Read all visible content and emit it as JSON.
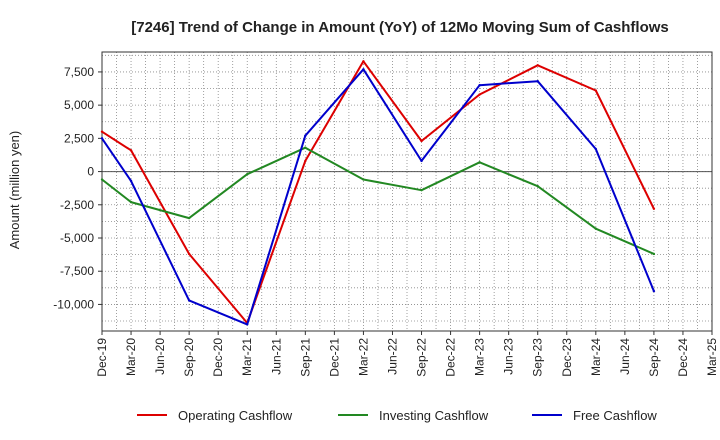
{
  "chart_data": {
    "type": "line",
    "title": "[7246]  Trend of Change in Amount (YoY) of 12Mo Moving Sum of Cashflows",
    "xlabel": "",
    "ylabel": "Amount (million yen)",
    "ylim": [
      -12000,
      9000
    ],
    "yticks": [
      7500,
      5000,
      2500,
      0,
      -2500,
      -5000,
      -7500,
      -10000
    ],
    "ytick_labels": [
      "7,500",
      "5,000",
      "2,500",
      "0",
      "-2,500",
      "-5,000",
      "-7,500",
      "-10,000"
    ],
    "categories": [
      "Dec-19",
      "Mar-20",
      "Jun-20",
      "Sep-20",
      "Dec-20",
      "Mar-21",
      "Jun-21",
      "Sep-21",
      "Dec-21",
      "Mar-22",
      "Jun-22",
      "Sep-22",
      "Dec-22",
      "Mar-23",
      "Jun-23",
      "Sep-23",
      "Dec-23",
      "Mar-24",
      "Jun-24",
      "Sep-24",
      "Dec-24",
      "Mar-25"
    ],
    "grid": true,
    "legend_position": "bottom",
    "series": [
      {
        "name": "Operating Cashflow",
        "color": "#dd0000",
        "values": [
          3000,
          1600,
          null,
          -6200,
          null,
          -11400,
          null,
          800,
          null,
          8300,
          null,
          2300,
          null,
          5800,
          null,
          8000,
          null,
          6100,
          null,
          -2800,
          null,
          null
        ]
      },
      {
        "name": "Investing Cashflow",
        "color": "#228822",
        "values": [
          -600,
          -2300,
          null,
          -3500,
          null,
          -200,
          null,
          1800,
          null,
          -600,
          null,
          -1400,
          null,
          700,
          null,
          -1100,
          null,
          -4300,
          null,
          -6200,
          null,
          null
        ]
      },
      {
        "name": "Free Cashflow",
        "color": "#0000cc",
        "values": [
          2500,
          -700,
          null,
          -9700,
          null,
          -11500,
          null,
          2700,
          null,
          7700,
          null,
          800,
          null,
          6500,
          null,
          6800,
          null,
          1700,
          null,
          -9000,
          null,
          null
        ]
      }
    ]
  }
}
